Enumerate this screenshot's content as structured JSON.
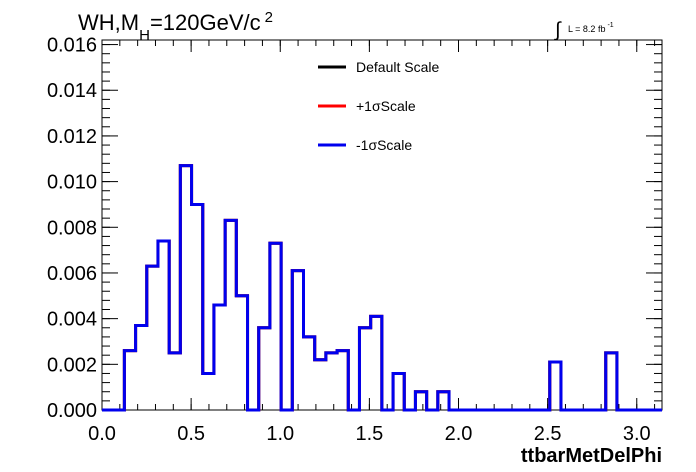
{
  "title": {
    "main": "WH,M",
    "sub": "H",
    "rest": "=120GeV/c",
    "sup": "2"
  },
  "lumi": {
    "integral": "∫",
    "text": "L = 8.2 fb",
    "sup": "-1"
  },
  "chart_data": {
    "type": "line",
    "xlabel": "ttbarMetDelPhi",
    "ylabel": "",
    "xlim": [
      0,
      3.14159
    ],
    "ylim": [
      0,
      0.0162
    ],
    "xticks": [
      "0.0",
      "0.5",
      "1.0",
      "1.5",
      "2.0",
      "2.5",
      "3.0"
    ],
    "yticks": [
      "0.000",
      "0.002",
      "0.004",
      "0.006",
      "0.008",
      "0.010",
      "0.012",
      "0.014",
      "0.016"
    ],
    "bin_width": 0.0628,
    "bin_edges_start": 0.0,
    "series": [
      {
        "name": "Default Scale",
        "color": "#000000",
        "values": [
          0,
          0,
          0.0026,
          0.0037,
          0.0063,
          0.0074,
          0.0025,
          0.0107,
          0.009,
          0.0016,
          0.0046,
          0.0083,
          0.005,
          0,
          0.0036,
          0.0073,
          0,
          0.0061,
          0.0032,
          0.0022,
          0.0025,
          0.0026,
          0,
          0.0036,
          0.0041,
          0,
          0.0016,
          0,
          0.0008,
          0,
          0.0008,
          0,
          0,
          0,
          0,
          0,
          0,
          0,
          0,
          0,
          0.0021,
          0,
          0,
          0,
          0,
          0.0025,
          0,
          0,
          0,
          0,
          0
        ]
      },
      {
        "name": "+1σScale",
        "color": "#ff0000",
        "values": [
          0,
          0,
          0.0026,
          0.0037,
          0.0063,
          0.0074,
          0.0025,
          0.0107,
          0.009,
          0.0016,
          0.0046,
          0.0083,
          0.005,
          0,
          0.0036,
          0.0073,
          0,
          0.0061,
          0.0032,
          0.0022,
          0.0025,
          0.0026,
          0,
          0.0036,
          0.0041,
          0,
          0.0016,
          0,
          0.0008,
          0,
          0.0008,
          0,
          0,
          0,
          0,
          0,
          0,
          0,
          0,
          0,
          0.0021,
          0,
          0,
          0,
          0,
          0.0025,
          0,
          0,
          0,
          0,
          0
        ]
      },
      {
        "name": "-1σScale",
        "color": "#0000ee",
        "values": [
          0,
          0,
          0.0026,
          0.0037,
          0.0063,
          0.0074,
          0.0025,
          0.0107,
          0.009,
          0.0016,
          0.0046,
          0.0083,
          0.005,
          0,
          0.0036,
          0.0073,
          0,
          0.0061,
          0.0032,
          0.0022,
          0.0025,
          0.0026,
          0,
          0.0036,
          0.0041,
          0,
          0.0016,
          0,
          0.0008,
          0,
          0.0008,
          0,
          0,
          0,
          0,
          0,
          0,
          0,
          0,
          0,
          0.0021,
          0,
          0,
          0,
          0,
          0.0025,
          0,
          0,
          0,
          0,
          0
        ]
      }
    ]
  }
}
